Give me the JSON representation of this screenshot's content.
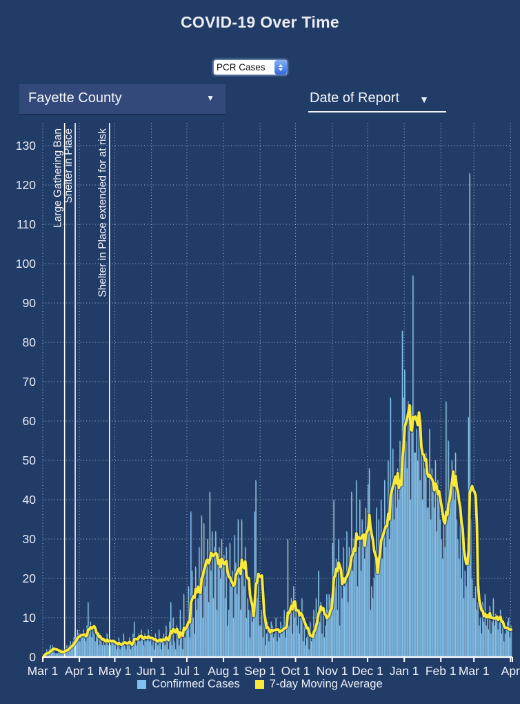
{
  "page": {
    "title": "COVID-19 Over Time",
    "background": "#223c68"
  },
  "controls": {
    "metric_select": {
      "value": "PCR Cases"
    },
    "county_dropdown": {
      "value": "Fayette County",
      "caret_icon": "▼"
    },
    "sort_dropdown": {
      "label": "Date of Report",
      "caret_icon": "▼"
    }
  },
  "legend": [
    {
      "label": "Confirmed Cases",
      "color": "#7fc0ef"
    },
    {
      "label": "7-day Moving Average",
      "color": "#f8e93b"
    }
  ],
  "chart_data": {
    "type": "bar",
    "title": "COVID-19 Over Time",
    "xlabel": "",
    "ylabel": "",
    "ylim": [
      0,
      135
    ],
    "y_ticks": [
      0,
      10,
      20,
      30,
      40,
      50,
      60,
      70,
      80,
      90,
      100,
      110,
      120,
      130
    ],
    "grid": "dotted",
    "legend_position": "bottom",
    "x_start_date": "Mar 1 (2020)",
    "x_end_date": "Apr 1 (2021)",
    "x_ticks": [
      {
        "label": "Mar 1",
        "day": 0
      },
      {
        "label": "Apr 1",
        "day": 31
      },
      {
        "label": "May 1",
        "day": 61
      },
      {
        "label": "Jun 1",
        "day": 92
      },
      {
        "label": "Jul 1",
        "day": 122
      },
      {
        "label": "Aug 1",
        "day": 153
      },
      {
        "label": "Sep 1",
        "day": 184
      },
      {
        "label": "Oct 1",
        "day": 214
      },
      {
        "label": "Nov 1",
        "day": 245
      },
      {
        "label": "Dec 1",
        "day": 275
      },
      {
        "label": "Jan 1",
        "day": 306
      },
      {
        "label": "Feb 1",
        "day": 337
      },
      {
        "label": "Mar 1",
        "day": 365
      },
      {
        "label": "Apr",
        "day": 396
      }
    ],
    "annotations": [
      {
        "label": "Large Gathering Ban",
        "day": 18
      },
      {
        "label": "Shelter in Place",
        "day": 27
      },
      {
        "label": "Shelter in Place extended for at risk",
        "day": 56
      }
    ],
    "series": [
      {
        "name": "Confirmed Cases",
        "type": "bar",
        "color": "#82c2ef",
        "values": [
          0,
          1,
          1,
          2,
          1,
          2,
          3,
          2,
          3,
          2,
          1,
          1,
          1,
          2,
          1,
          1,
          2,
          1,
          2,
          2,
          3,
          2,
          3,
          4,
          3,
          4,
          5,
          6,
          5,
          7,
          6,
          4,
          6,
          5,
          7,
          5,
          4,
          8,
          14,
          6,
          9,
          5,
          7,
          6,
          4,
          6,
          5,
          3,
          6,
          4,
          3,
          5,
          3,
          4,
          6,
          3,
          5,
          3,
          4,
          4,
          3,
          4,
          2,
          3,
          5,
          2,
          3,
          4,
          6,
          3,
          2,
          4,
          3,
          5,
          2,
          3,
          6,
          9,
          4,
          3,
          5,
          6,
          4,
          7,
          5,
          3,
          6,
          4,
          5,
          7,
          4,
          5,
          3,
          5,
          2,
          6,
          4,
          3,
          7,
          4,
          2,
          5,
          6,
          3,
          8,
          4,
          2,
          9,
          14,
          3,
          10,
          4,
          2,
          8,
          5,
          3,
          12,
          6,
          2,
          16,
          5,
          8,
          8,
          18,
          5,
          37,
          22,
          10,
          6,
          23,
          12,
          15,
          28,
          20,
          36,
          10,
          34,
          18,
          25,
          30,
          14,
          42,
          22,
          32,
          15,
          28,
          32,
          12,
          25,
          28,
          20,
          30,
          24,
          26,
          15,
          28,
          8,
          12,
          29,
          18,
          22,
          10,
          31,
          24,
          16,
          35,
          20,
          12,
          35,
          22,
          18,
          28,
          10,
          15,
          12,
          5,
          12,
          9,
          10,
          37,
          45,
          15,
          20,
          8,
          8,
          12,
          5,
          10,
          3,
          6,
          9,
          4,
          7,
          9,
          8,
          5,
          6,
          10,
          4,
          7,
          5,
          9,
          6,
          8,
          12,
          5,
          9,
          30,
          8,
          12,
          15,
          6,
          18,
          10,
          14,
          8,
          12,
          6,
          10,
          15,
          4,
          8,
          3,
          5,
          7,
          2,
          9,
          4,
          6,
          12,
          8,
          15,
          10,
          22,
          9,
          14,
          6,
          11,
          5,
          8,
          16,
          12,
          16,
          15,
          14,
          29,
          40,
          18,
          25,
          12,
          30,
          8,
          22,
          15,
          28,
          18,
          20,
          32,
          14,
          28,
          25,
          42,
          22,
          30,
          28,
          45,
          18,
          28,
          40,
          22,
          35,
          30,
          25,
          38,
          33,
          44,
          48,
          12,
          18,
          15,
          20,
          25,
          38,
          22,
          35,
          28,
          40,
          25,
          32,
          45,
          28,
          35,
          50,
          30,
          66,
          42,
          53,
          35,
          45,
          38,
          48,
          40,
          55,
          45,
          83,
          66,
          73,
          55,
          48,
          65,
          58,
          40,
          64,
          97,
          52,
          52,
          58,
          50,
          62,
          45,
          55,
          40,
          50,
          48,
          52,
          38,
          38,
          58,
          35,
          48,
          42,
          38,
          50,
          32,
          45,
          40,
          35,
          30,
          25,
          35,
          28,
          65,
          35,
          55,
          38,
          42,
          50,
          45,
          40,
          52,
          35,
          30,
          25,
          38,
          20,
          28,
          15,
          22,
          18,
          25,
          61,
          123,
          35,
          20,
          15,
          15,
          18,
          12,
          14,
          8,
          10,
          6,
          14,
          9,
          16,
          8,
          11,
          7,
          13,
          6,
          9,
          15,
          8,
          11,
          10,
          7,
          9,
          12,
          6,
          8,
          4,
          6,
          7,
          9,
          10,
          5,
          8
        ]
      },
      {
        "name": "7-day Moving Average",
        "type": "line",
        "color": "#f8e93b",
        "derived": "trailing 7-day mean of Confirmed Cases"
      }
    ]
  }
}
